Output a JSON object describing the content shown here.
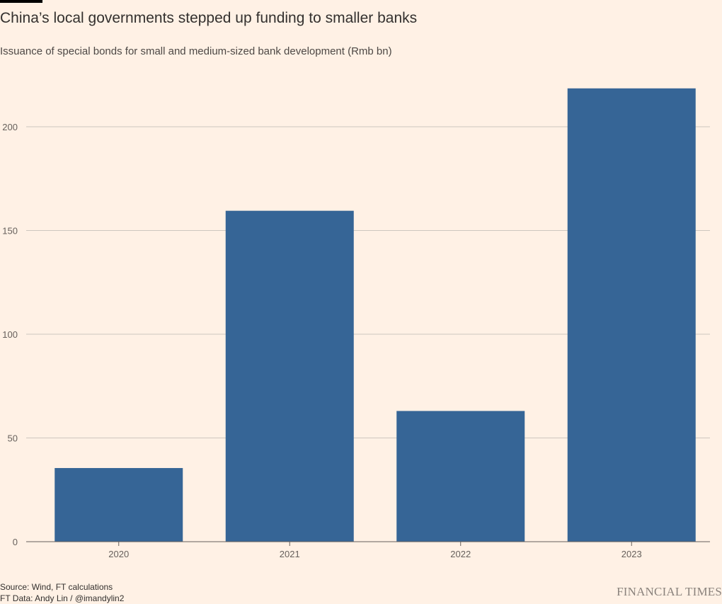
{
  "header": {
    "title": "China’s local governments stepped up funding to smaller banks",
    "subtitle": "Issuance of special bonds for small and medium-sized bank development (Rmb bn)"
  },
  "footer": {
    "source": "Source: Wind, FT calculations",
    "credit": "FT Data: Andy Lin / @imandylin2",
    "brand": "FINANCIAL TIMES"
  },
  "colors": {
    "background": "#FFF1E5",
    "bar": "#366596",
    "gridline": "#CEC6BF",
    "baseline": "#66605C"
  },
  "chart_data": {
    "type": "bar",
    "title": "China’s local governments stepped up funding to smaller banks",
    "subtitle": "Issuance of special bonds for small and medium-sized bank development (Rmb bn)",
    "categories": [
      "2020",
      "2021",
      "2022",
      "2023"
    ],
    "values": [
      35.5,
      159.5,
      63,
      218.5
    ],
    "ylim": [
      0,
      200
    ],
    "yticks": [
      0,
      50,
      100,
      150,
      200
    ],
    "grid": true,
    "legend": "none"
  }
}
